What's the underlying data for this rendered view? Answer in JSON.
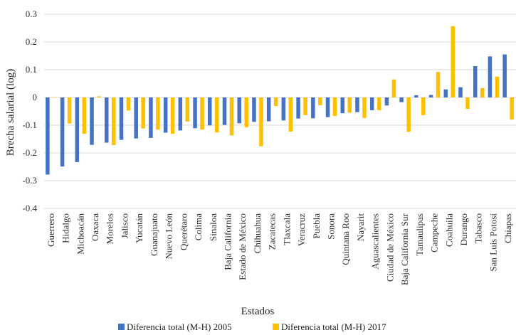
{
  "chart_data": {
    "type": "bar",
    "title": "",
    "xlabel": "Estados",
    "ylabel": "Brecha salarial (log)",
    "ylim": [
      -0.4,
      0.3
    ],
    "yticks": [
      "0.3",
      "0.2",
      "0.1",
      "0",
      "-0.1",
      "-0.2",
      "-0.3",
      "-0.4"
    ],
    "grid": "horizontal",
    "legend_position": "bottom",
    "categories": [
      "Guerrero",
      "Hidalgo",
      "Michoacán",
      "Oaxaca",
      "Morelos",
      "Jalisco",
      "Yucatán",
      "Guanajuato",
      "Nuevo León",
      "Querétaro",
      "Colima",
      "Sinaloa",
      "Baja California",
      "Estado de México",
      "Chihuahua",
      "Zacatecas",
      "Tlaxcala",
      "Veracruz",
      "Puebla",
      "Sonora",
      "Quintana Roo",
      "Nayarit",
      "Aguascalientes",
      "Ciudad de México",
      "Baja California Sur",
      "Tamaulipas",
      "Campeche",
      "Coahuila",
      "Durango",
      "Tabasco",
      "San Luis Potosí",
      "Chiapas"
    ],
    "series": [
      {
        "name": "Diferencia total (M-H) 2005",
        "color": "#4472C4",
        "values": [
          -0.278,
          -0.249,
          -0.233,
          -0.171,
          -0.163,
          -0.153,
          -0.148,
          -0.146,
          -0.127,
          -0.119,
          -0.111,
          -0.101,
          -0.099,
          -0.093,
          -0.088,
          -0.086,
          -0.083,
          -0.076,
          -0.075,
          -0.071,
          -0.057,
          -0.053,
          -0.046,
          -0.029,
          -0.017,
          0.008,
          0.009,
          0.029,
          0.037,
          0.113,
          0.148,
          0.155
        ]
      },
      {
        "name": "Diferencia total (M-H) 2017",
        "color": "#FFC000",
        "values": [
          0.001,
          -0.094,
          -0.131,
          0.004,
          -0.172,
          -0.047,
          -0.112,
          -0.116,
          -0.131,
          -0.087,
          -0.116,
          -0.126,
          -0.137,
          -0.107,
          -0.176,
          -0.031,
          -0.123,
          -0.064,
          -0.028,
          -0.067,
          -0.055,
          -0.074,
          -0.046,
          0.065,
          -0.124,
          -0.064,
          0.092,
          0.257,
          -0.041,
          0.034,
          0.075,
          -0.08
        ]
      }
    ]
  }
}
